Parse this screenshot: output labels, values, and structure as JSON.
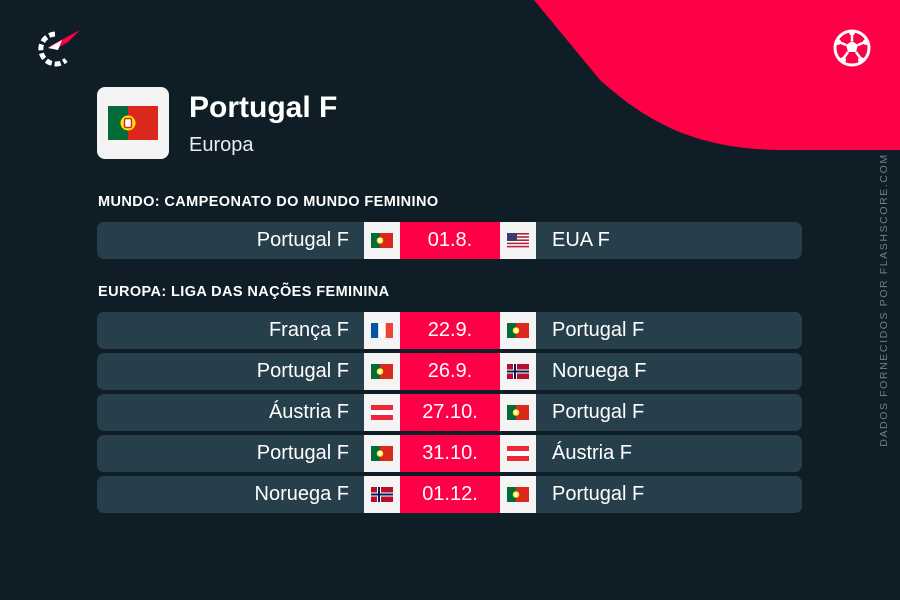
{
  "brand": {
    "logo_icon": "flashscore-logo-icon",
    "sport_icon": "football-icon",
    "accent_color": "#ff0046",
    "background_color": "#0f1e26",
    "row_color": "#263f4b",
    "credit": "DADOS FORNECIDOS POR FLASHSCORE.COM"
  },
  "team": {
    "name": "Portugal F",
    "region": "Europa",
    "flag": "portugal"
  },
  "sections": [
    {
      "title": "MUNDO: CAMPEONATO DO MUNDO FEMININO",
      "matches": [
        {
          "home": "Portugal F",
          "home_flag": "portugal",
          "date": "01.8.",
          "away": "EUA F",
          "away_flag": "usa"
        }
      ]
    },
    {
      "title": "EUROPA: LIGA DAS NAÇÕES FEMININA",
      "matches": [
        {
          "home": "França F",
          "home_flag": "france",
          "date": "22.9.",
          "away": "Portugal F",
          "away_flag": "portugal"
        },
        {
          "home": "Portugal F",
          "home_flag": "portugal",
          "date": "26.9.",
          "away": "Noruega F",
          "away_flag": "norway"
        },
        {
          "home": "Áustria F",
          "home_flag": "austria",
          "date": "27.10.",
          "away": "Portugal F",
          "away_flag": "portugal"
        },
        {
          "home": "Portugal F",
          "home_flag": "portugal",
          "date": "31.10.",
          "away": "Áustria F",
          "away_flag": "austria"
        },
        {
          "home": "Noruega F",
          "home_flag": "norway",
          "date": "01.12.",
          "away": "Portugal F",
          "away_flag": "portugal"
        }
      ]
    }
  ]
}
